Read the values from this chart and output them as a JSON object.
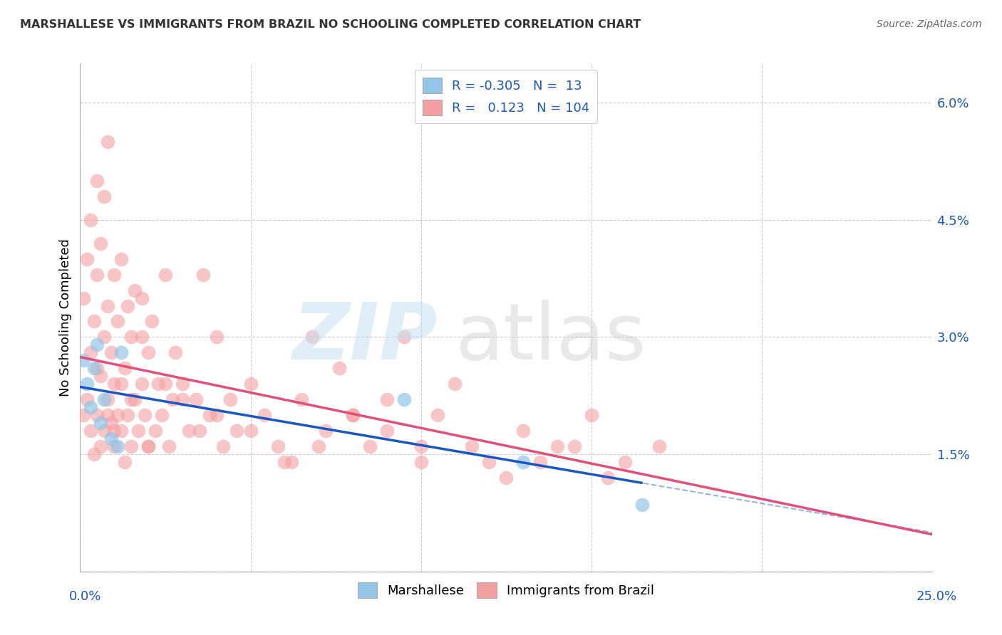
{
  "title": "MARSHALLESE VS IMMIGRANTS FROM BRAZIL NO SCHOOLING COMPLETED CORRELATION CHART",
  "source": "Source: ZipAtlas.com",
  "ylabel": "No Schooling Completed",
  "xlim": [
    0.0,
    0.25
  ],
  "ylim": [
    0.0,
    0.065
  ],
  "legend_blue_r": "-0.305",
  "legend_blue_n": "13",
  "legend_pink_r": "0.123",
  "legend_pink_n": "104",
  "blue_color": "#92C5E8",
  "pink_color": "#F4A0A0",
  "blue_line_color": "#1A56C4",
  "pink_line_color": "#E0507A",
  "background_color": "#FFFFFF",
  "grid_color": "#CCCCCC",
  "marshallese_x": [
    0.001,
    0.002,
    0.003,
    0.004,
    0.005,
    0.006,
    0.007,
    0.009,
    0.011,
    0.012,
    0.095,
    0.13,
    0.165
  ],
  "marshallese_y": [
    0.027,
    0.024,
    0.021,
    0.026,
    0.029,
    0.019,
    0.022,
    0.017,
    0.016,
    0.028,
    0.022,
    0.014,
    0.0085
  ],
  "brazil_x": [
    0.001,
    0.001,
    0.002,
    0.002,
    0.003,
    0.003,
    0.003,
    0.004,
    0.004,
    0.005,
    0.005,
    0.005,
    0.006,
    0.006,
    0.006,
    0.007,
    0.007,
    0.007,
    0.008,
    0.008,
    0.008,
    0.009,
    0.009,
    0.01,
    0.01,
    0.01,
    0.011,
    0.011,
    0.012,
    0.012,
    0.013,
    0.013,
    0.014,
    0.014,
    0.015,
    0.015,
    0.016,
    0.016,
    0.017,
    0.018,
    0.018,
    0.019,
    0.02,
    0.02,
    0.021,
    0.022,
    0.023,
    0.024,
    0.025,
    0.026,
    0.027,
    0.028,
    0.03,
    0.032,
    0.034,
    0.036,
    0.038,
    0.04,
    0.042,
    0.044,
    0.046,
    0.05,
    0.054,
    0.058,
    0.062,
    0.065,
    0.068,
    0.072,
    0.076,
    0.08,
    0.085,
    0.09,
    0.095,
    0.1,
    0.105,
    0.11,
    0.12,
    0.13,
    0.14,
    0.15,
    0.16,
    0.17,
    0.005,
    0.008,
    0.01,
    0.012,
    0.015,
    0.018,
    0.02,
    0.025,
    0.03,
    0.035,
    0.04,
    0.05,
    0.06,
    0.07,
    0.08,
    0.09,
    0.1,
    0.115,
    0.125,
    0.135,
    0.145,
    0.155
  ],
  "brazil_y": [
    0.02,
    0.035,
    0.022,
    0.04,
    0.018,
    0.028,
    0.045,
    0.015,
    0.032,
    0.02,
    0.038,
    0.05,
    0.016,
    0.025,
    0.042,
    0.018,
    0.03,
    0.048,
    0.022,
    0.034,
    0.055,
    0.019,
    0.028,
    0.016,
    0.024,
    0.038,
    0.02,
    0.032,
    0.018,
    0.04,
    0.014,
    0.026,
    0.02,
    0.034,
    0.016,
    0.03,
    0.022,
    0.036,
    0.018,
    0.024,
    0.035,
    0.02,
    0.016,
    0.028,
    0.032,
    0.018,
    0.024,
    0.02,
    0.038,
    0.016,
    0.022,
    0.028,
    0.024,
    0.018,
    0.022,
    0.038,
    0.02,
    0.03,
    0.016,
    0.022,
    0.018,
    0.024,
    0.02,
    0.016,
    0.014,
    0.022,
    0.03,
    0.018,
    0.026,
    0.02,
    0.016,
    0.022,
    0.03,
    0.016,
    0.02,
    0.024,
    0.014,
    0.018,
    0.016,
    0.02,
    0.014,
    0.016,
    0.026,
    0.02,
    0.018,
    0.024,
    0.022,
    0.03,
    0.016,
    0.024,
    0.022,
    0.018,
    0.02,
    0.018,
    0.014,
    0.016,
    0.02,
    0.018,
    0.014,
    0.016,
    0.012,
    0.014,
    0.016,
    0.012
  ]
}
